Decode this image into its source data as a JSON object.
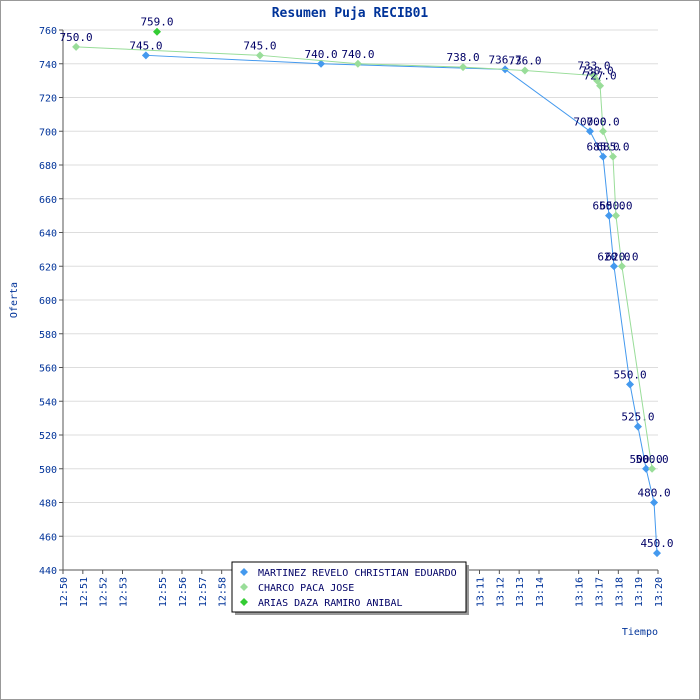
{
  "chart_data": {
    "type": "line",
    "title": "Resumen Puja RECIB01",
    "y_label": "Oferta",
    "x_label": "Tiempo",
    "xlim": [
      770,
      800
    ],
    "ylim": [
      440,
      760
    ],
    "yticks": [
      440,
      460,
      480,
      500,
      520,
      540,
      560,
      580,
      600,
      620,
      640,
      660,
      680,
      700,
      720,
      740,
      760
    ],
    "xticks": [
      {
        "value": 770,
        "label": "12:50"
      },
      {
        "value": 771,
        "label": "12:51"
      },
      {
        "value": 772,
        "label": "12:52"
      },
      {
        "value": 773,
        "label": "12:53"
      },
      {
        "value": 775,
        "label": "12:55"
      },
      {
        "value": 776,
        "label": "12:56"
      },
      {
        "value": 777,
        "label": "12:57"
      },
      {
        "value": 778,
        "label": "12:58"
      },
      {
        "value": 791,
        "label": "13:11"
      },
      {
        "value": 792,
        "label": "13:12"
      },
      {
        "value": 793,
        "label": "13:13"
      },
      {
        "value": 794,
        "label": "13:14"
      },
      {
        "value": 796,
        "label": "13:16"
      },
      {
        "value": 797,
        "label": "13:17"
      },
      {
        "value": 798,
        "label": "13:18"
      },
      {
        "value": 799,
        "label": "13:19"
      },
      {
        "value": 800,
        "label": "13:20"
      }
    ],
    "grid": true,
    "legend": "bottom",
    "series": [
      {
        "name": "MARTINEZ REVELO CHRISTIAN EDUARDO",
        "color": "#4499ee",
        "x": [
          774.18,
          783.01,
          792.29,
          796.57,
          797.23,
          797.53,
          797.78,
          798.59,
          798.99,
          799.4,
          799.8,
          799.95
        ],
        "values": [
          745,
          740,
          736.7,
          700,
          685,
          650,
          620,
          550,
          525,
          500,
          480,
          450
        ],
        "value_labels": [
          "745.0",
          "740.0",
          "736.7",
          "700.0",
          "685.0",
          "650.0",
          "620.0",
          "550.0",
          "525.0",
          "500.0",
          "480.0",
          "450.0"
        ]
      },
      {
        "name": "CHARCO PACA JOSE",
        "color": "#99dd99",
        "x": [
          770.66,
          779.93,
          784.87,
          790.17,
          793.29,
          796.77,
          796.93,
          797.08,
          797.23,
          797.73,
          797.88,
          798.18,
          799.7
        ],
        "values": [
          750,
          745,
          740,
          738,
          736,
          733,
          730,
          727,
          700,
          685,
          650,
          620,
          500
        ],
        "value_labels": [
          "750.0",
          "745.0",
          "740.0",
          "738.0",
          "736.0",
          "733.0",
          "730.0",
          "727.0",
          "700.0",
          "685.0",
          "650.0",
          "620.0",
          "500.0"
        ]
      },
      {
        "name": "ARIAS DAZA RAMIRO ANIBAL",
        "color": "#33cc33",
        "x": [
          774.74
        ],
        "values": [
          759
        ],
        "value_labels": [
          "759.0"
        ]
      }
    ]
  }
}
